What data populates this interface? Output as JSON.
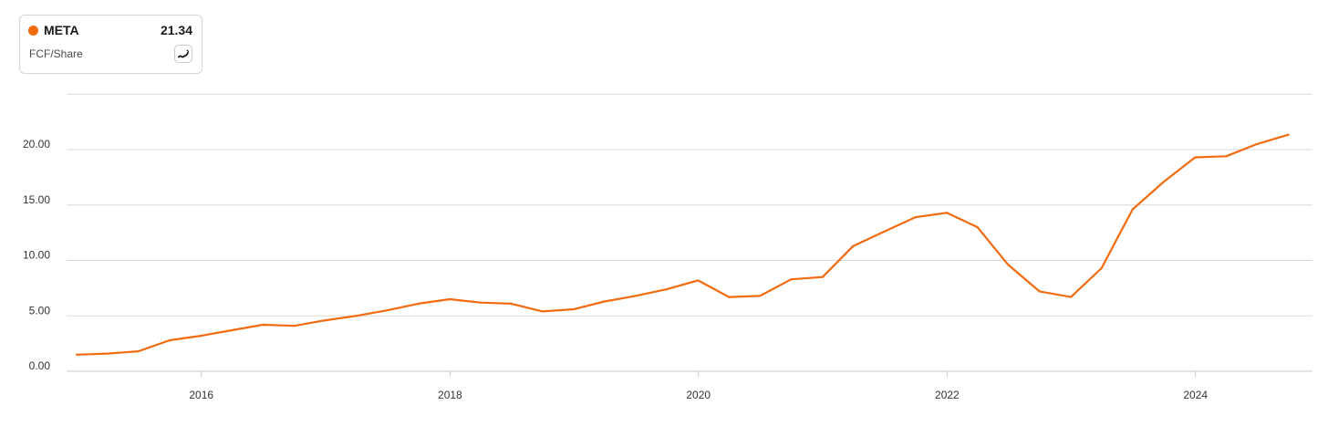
{
  "legend": {
    "ticker": "META",
    "value": "21.34",
    "metric": "FCF/Share",
    "toggle_icon": "sparkline-icon"
  },
  "colors": {
    "series": "#f26b0f",
    "grid": "#d9d9d9",
    "axis": "#c8c8c8",
    "tick_text": "#333333"
  },
  "chart_data": {
    "type": "line",
    "title": "",
    "xlabel": "",
    "ylabel": "",
    "xlim": [
      "2014-12-01",
      "2024-12-10"
    ],
    "ylim": [
      0,
      25
    ],
    "yticks": [
      0,
      5,
      10,
      15,
      20
    ],
    "ytick_labels": [
      "0.00",
      "5.00",
      "10.00",
      "15.00",
      "20.00"
    ],
    "xticks": [
      "2016-01-01",
      "2018-01-01",
      "2020-01-01",
      "2022-01-01",
      "2024-01-01"
    ],
    "xtick_labels": [
      "2016",
      "2018",
      "2020",
      "2022",
      "2024"
    ],
    "grid": true,
    "legend_position": "top-left",
    "series": [
      {
        "name": "META",
        "x": [
          "2014-12-31",
          "2015-03-31",
          "2015-06-30",
          "2015-09-30",
          "2015-12-31",
          "2016-03-31",
          "2016-06-30",
          "2016-09-30",
          "2016-12-31",
          "2017-03-31",
          "2017-06-30",
          "2017-09-30",
          "2017-12-31",
          "2018-03-31",
          "2018-06-30",
          "2018-09-30",
          "2018-12-31",
          "2019-03-31",
          "2019-06-30",
          "2019-09-30",
          "2019-12-31",
          "2020-03-31",
          "2020-06-30",
          "2020-09-30",
          "2020-12-31",
          "2021-03-31",
          "2021-06-30",
          "2021-09-30",
          "2021-12-31",
          "2022-03-31",
          "2022-06-30",
          "2022-09-30",
          "2022-12-31",
          "2023-03-31",
          "2023-06-30",
          "2023-09-30",
          "2023-12-31",
          "2024-03-31",
          "2024-06-30",
          "2024-09-30"
        ],
        "y": [
          1.5,
          1.6,
          1.8,
          2.8,
          3.2,
          3.7,
          4.2,
          4.1,
          4.6,
          5.0,
          5.5,
          6.1,
          6.5,
          6.2,
          6.1,
          5.4,
          5.6,
          6.3,
          6.8,
          7.4,
          8.2,
          6.7,
          6.8,
          8.3,
          8.5,
          11.3,
          12.6,
          13.9,
          14.3,
          13.0,
          9.6,
          7.2,
          6.7,
          9.3,
          14.6,
          17.1,
          19.3,
          19.4,
          20.5,
          21.34
        ]
      }
    ]
  }
}
